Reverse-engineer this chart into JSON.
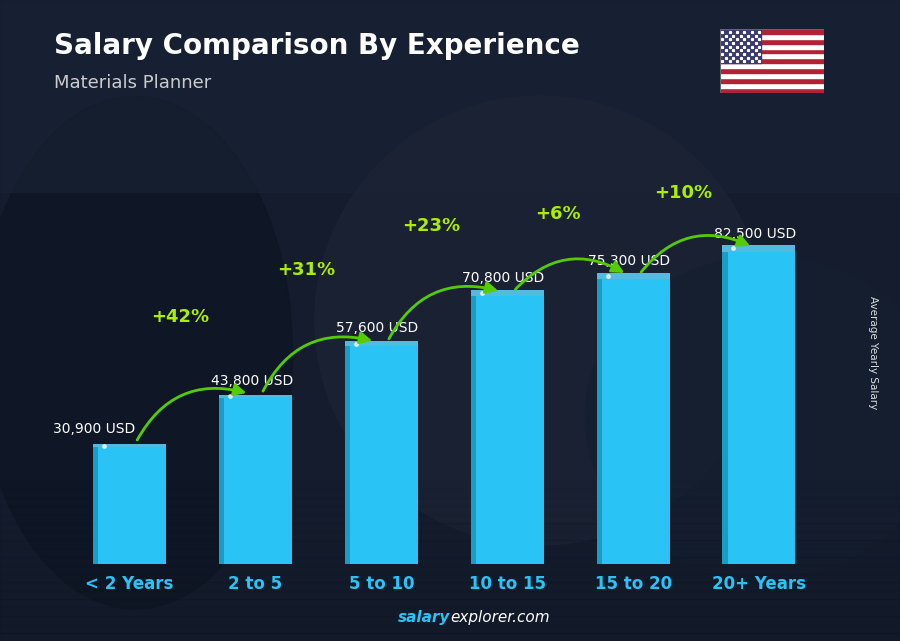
{
  "title": "Salary Comparison By Experience",
  "subtitle": "Materials Planner",
  "categories": [
    "< 2 Years",
    "2 to 5",
    "5 to 10",
    "10 to 15",
    "15 to 20",
    "20+ Years"
  ],
  "values": [
    30900,
    43800,
    57600,
    70800,
    75300,
    82500
  ],
  "labels": [
    "30,900 USD",
    "43,800 USD",
    "57,600 USD",
    "70,800 USD",
    "75,300 USD",
    "82,500 USD"
  ],
  "pct_changes": [
    null,
    "+42%",
    "+31%",
    "+23%",
    "+6%",
    "+10%"
  ],
  "bar_color_main": "#29C4F5",
  "bar_color_left": "#1A9DC4",
  "bar_color_top": "#5BD8FF",
  "bg_dark": "#1C2333",
  "bg_mid": "#2A3245",
  "title_color": "#ffffff",
  "subtitle_color": "#cccccc",
  "label_color": "#ffffff",
  "pct_color": "#AAEE00",
  "arrow_color": "#55CC00",
  "xlabel_color": "#29C4F5",
  "footer_salary": "salary",
  "footer_rest": "explorer.com",
  "ylabel_text": "Average Yearly Salary",
  "ylim": [
    0,
    110000
  ],
  "bar_width": 0.58
}
